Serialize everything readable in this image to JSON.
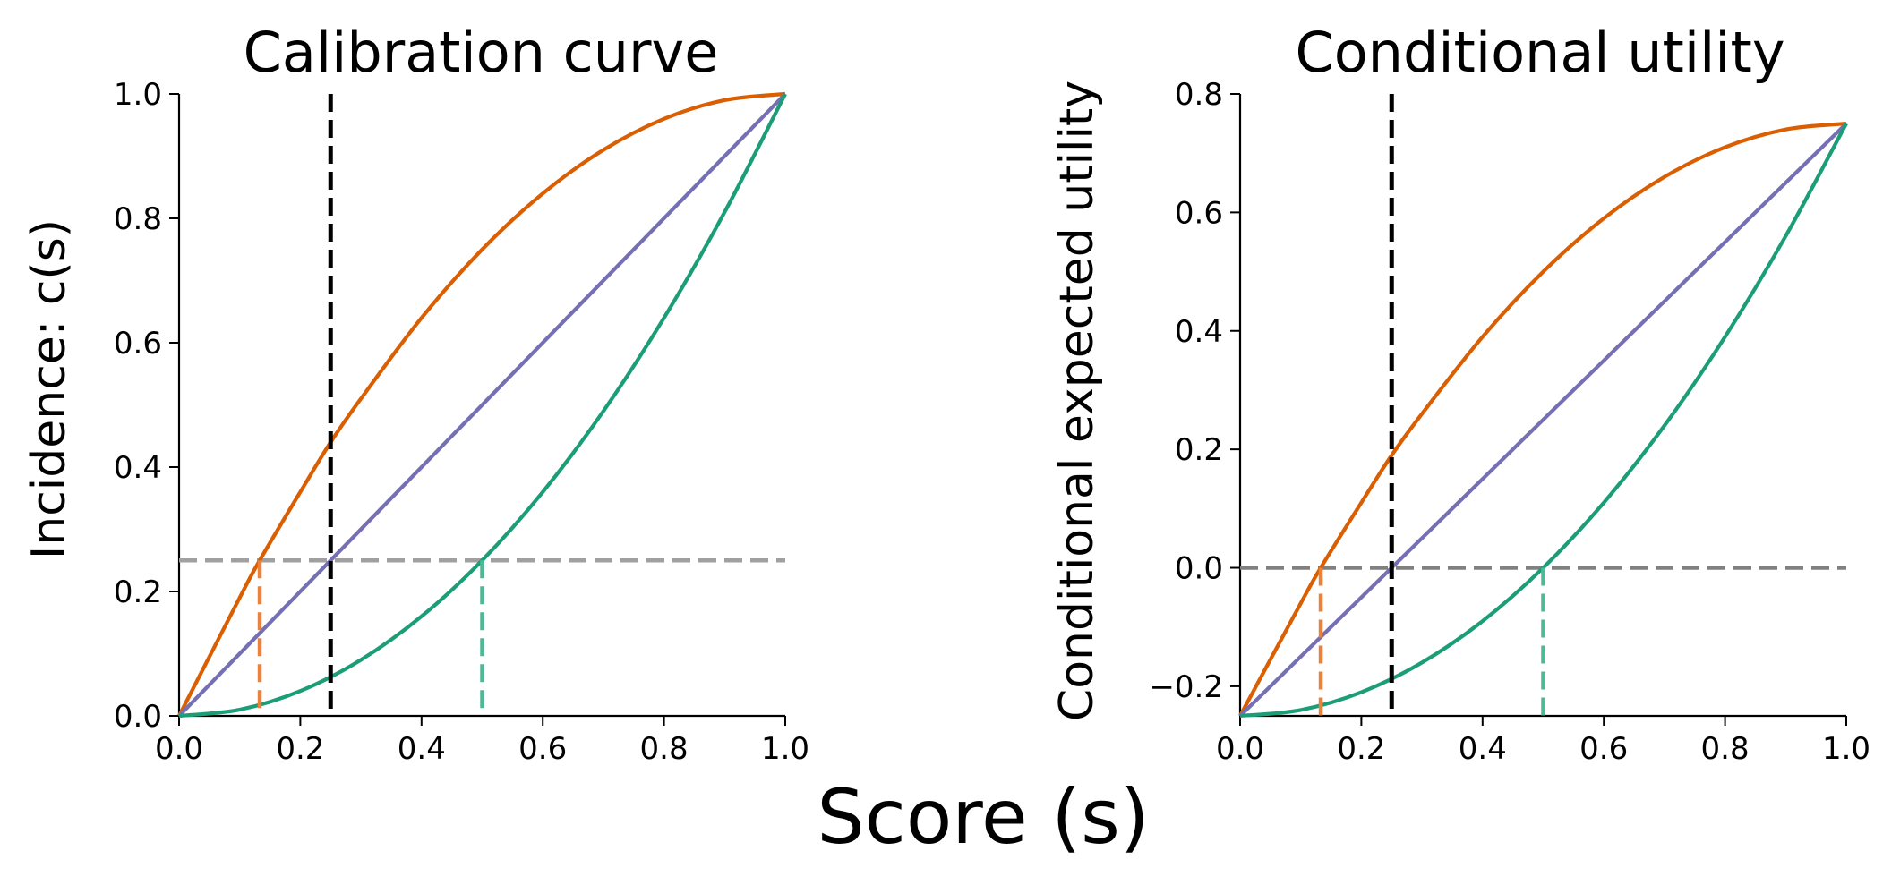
{
  "figure": {
    "shared_xlabel": "Score (s)"
  },
  "colors": {
    "orange": "#d95f02",
    "purple": "#7570b3",
    "green": "#1b9e77",
    "orange_light": "#e8823d",
    "green_light": "#4fb996",
    "threshold": "#000000",
    "ref_left": "#a0a0a0",
    "ref_right": "#808080"
  },
  "chart_data": [
    {
      "type": "line",
      "title": "Calibration curve",
      "xlabel": "",
      "ylabel": "Incidence: c(s)",
      "xlim": [
        0,
        1
      ],
      "ylim": [
        0,
        1
      ],
      "xticks": [
        "0.0",
        "0.2",
        "0.4",
        "0.6",
        "0.8",
        "1.0"
      ],
      "yticks": [
        "0.0",
        "0.2",
        "0.4",
        "0.6",
        "0.8",
        "1.0"
      ],
      "grid": false,
      "series": [
        {
          "color": "orange",
          "x": [
            0,
            0.1,
            0.133,
            0.2,
            0.25,
            0.3,
            0.4,
            0.5,
            0.6,
            0.7,
            0.8,
            0.9,
            1.0
          ],
          "y": [
            0,
            0.19,
            0.25,
            0.36,
            0.44,
            0.51,
            0.64,
            0.75,
            0.84,
            0.91,
            0.96,
            0.99,
            1.0
          ]
        },
        {
          "color": "purple",
          "x": [
            0,
            1
          ],
          "y": [
            0,
            1
          ]
        },
        {
          "color": "green",
          "x": [
            0,
            0.1,
            0.2,
            0.3,
            0.4,
            0.5,
            0.6,
            0.7,
            0.8,
            0.9,
            1.0
          ],
          "y": [
            0,
            0.01,
            0.04,
            0.09,
            0.16,
            0.25,
            0.36,
            0.49,
            0.64,
            0.81,
            1.0
          ]
        }
      ],
      "threshold_x": 0.25,
      "reference_y": 0.25,
      "crossings": [
        {
          "x": 0.133,
          "y": 0.25,
          "color": "orange_light"
        },
        {
          "x": 0.5,
          "y": 0.25,
          "color": "green_light"
        }
      ]
    },
    {
      "type": "line",
      "title": "Conditional utility",
      "xlabel": "",
      "ylabel": "Conditional expected utility",
      "xlim": [
        0,
        1
      ],
      "ylim": [
        -0.25,
        0.8
      ],
      "xticks": [
        "0.0",
        "0.2",
        "0.4",
        "0.6",
        "0.8",
        "1.0"
      ],
      "yticks": [
        "−0.2",
        "0.0",
        "0.2",
        "0.4",
        "0.6",
        "0.8"
      ],
      "ytick_values": [
        -0.2,
        0.0,
        0.2,
        0.4,
        0.6,
        0.8
      ],
      "grid": false,
      "series": [
        {
          "color": "orange",
          "x": [
            0,
            0.1,
            0.133,
            0.2,
            0.25,
            0.3,
            0.4,
            0.5,
            0.6,
            0.7,
            0.8,
            0.9,
            1.0
          ],
          "y": [
            -0.25,
            -0.06,
            0.0,
            0.11,
            0.19,
            0.26,
            0.39,
            0.5,
            0.59,
            0.66,
            0.71,
            0.74,
            0.75
          ]
        },
        {
          "color": "purple",
          "x": [
            0,
            1
          ],
          "y": [
            -0.25,
            0.75
          ]
        },
        {
          "color": "green",
          "x": [
            0,
            0.1,
            0.2,
            0.3,
            0.4,
            0.5,
            0.6,
            0.7,
            0.8,
            0.9,
            1.0
          ],
          "y": [
            -0.25,
            -0.24,
            -0.21,
            -0.16,
            -0.09,
            0.0,
            0.11,
            0.24,
            0.39,
            0.56,
            0.75
          ]
        }
      ],
      "threshold_x": 0.25,
      "reference_y": 0.0,
      "crossings": [
        {
          "x": 0.133,
          "y": 0.0,
          "color": "orange_light"
        },
        {
          "x": 0.5,
          "y": 0.0,
          "color": "green_light"
        }
      ]
    }
  ]
}
